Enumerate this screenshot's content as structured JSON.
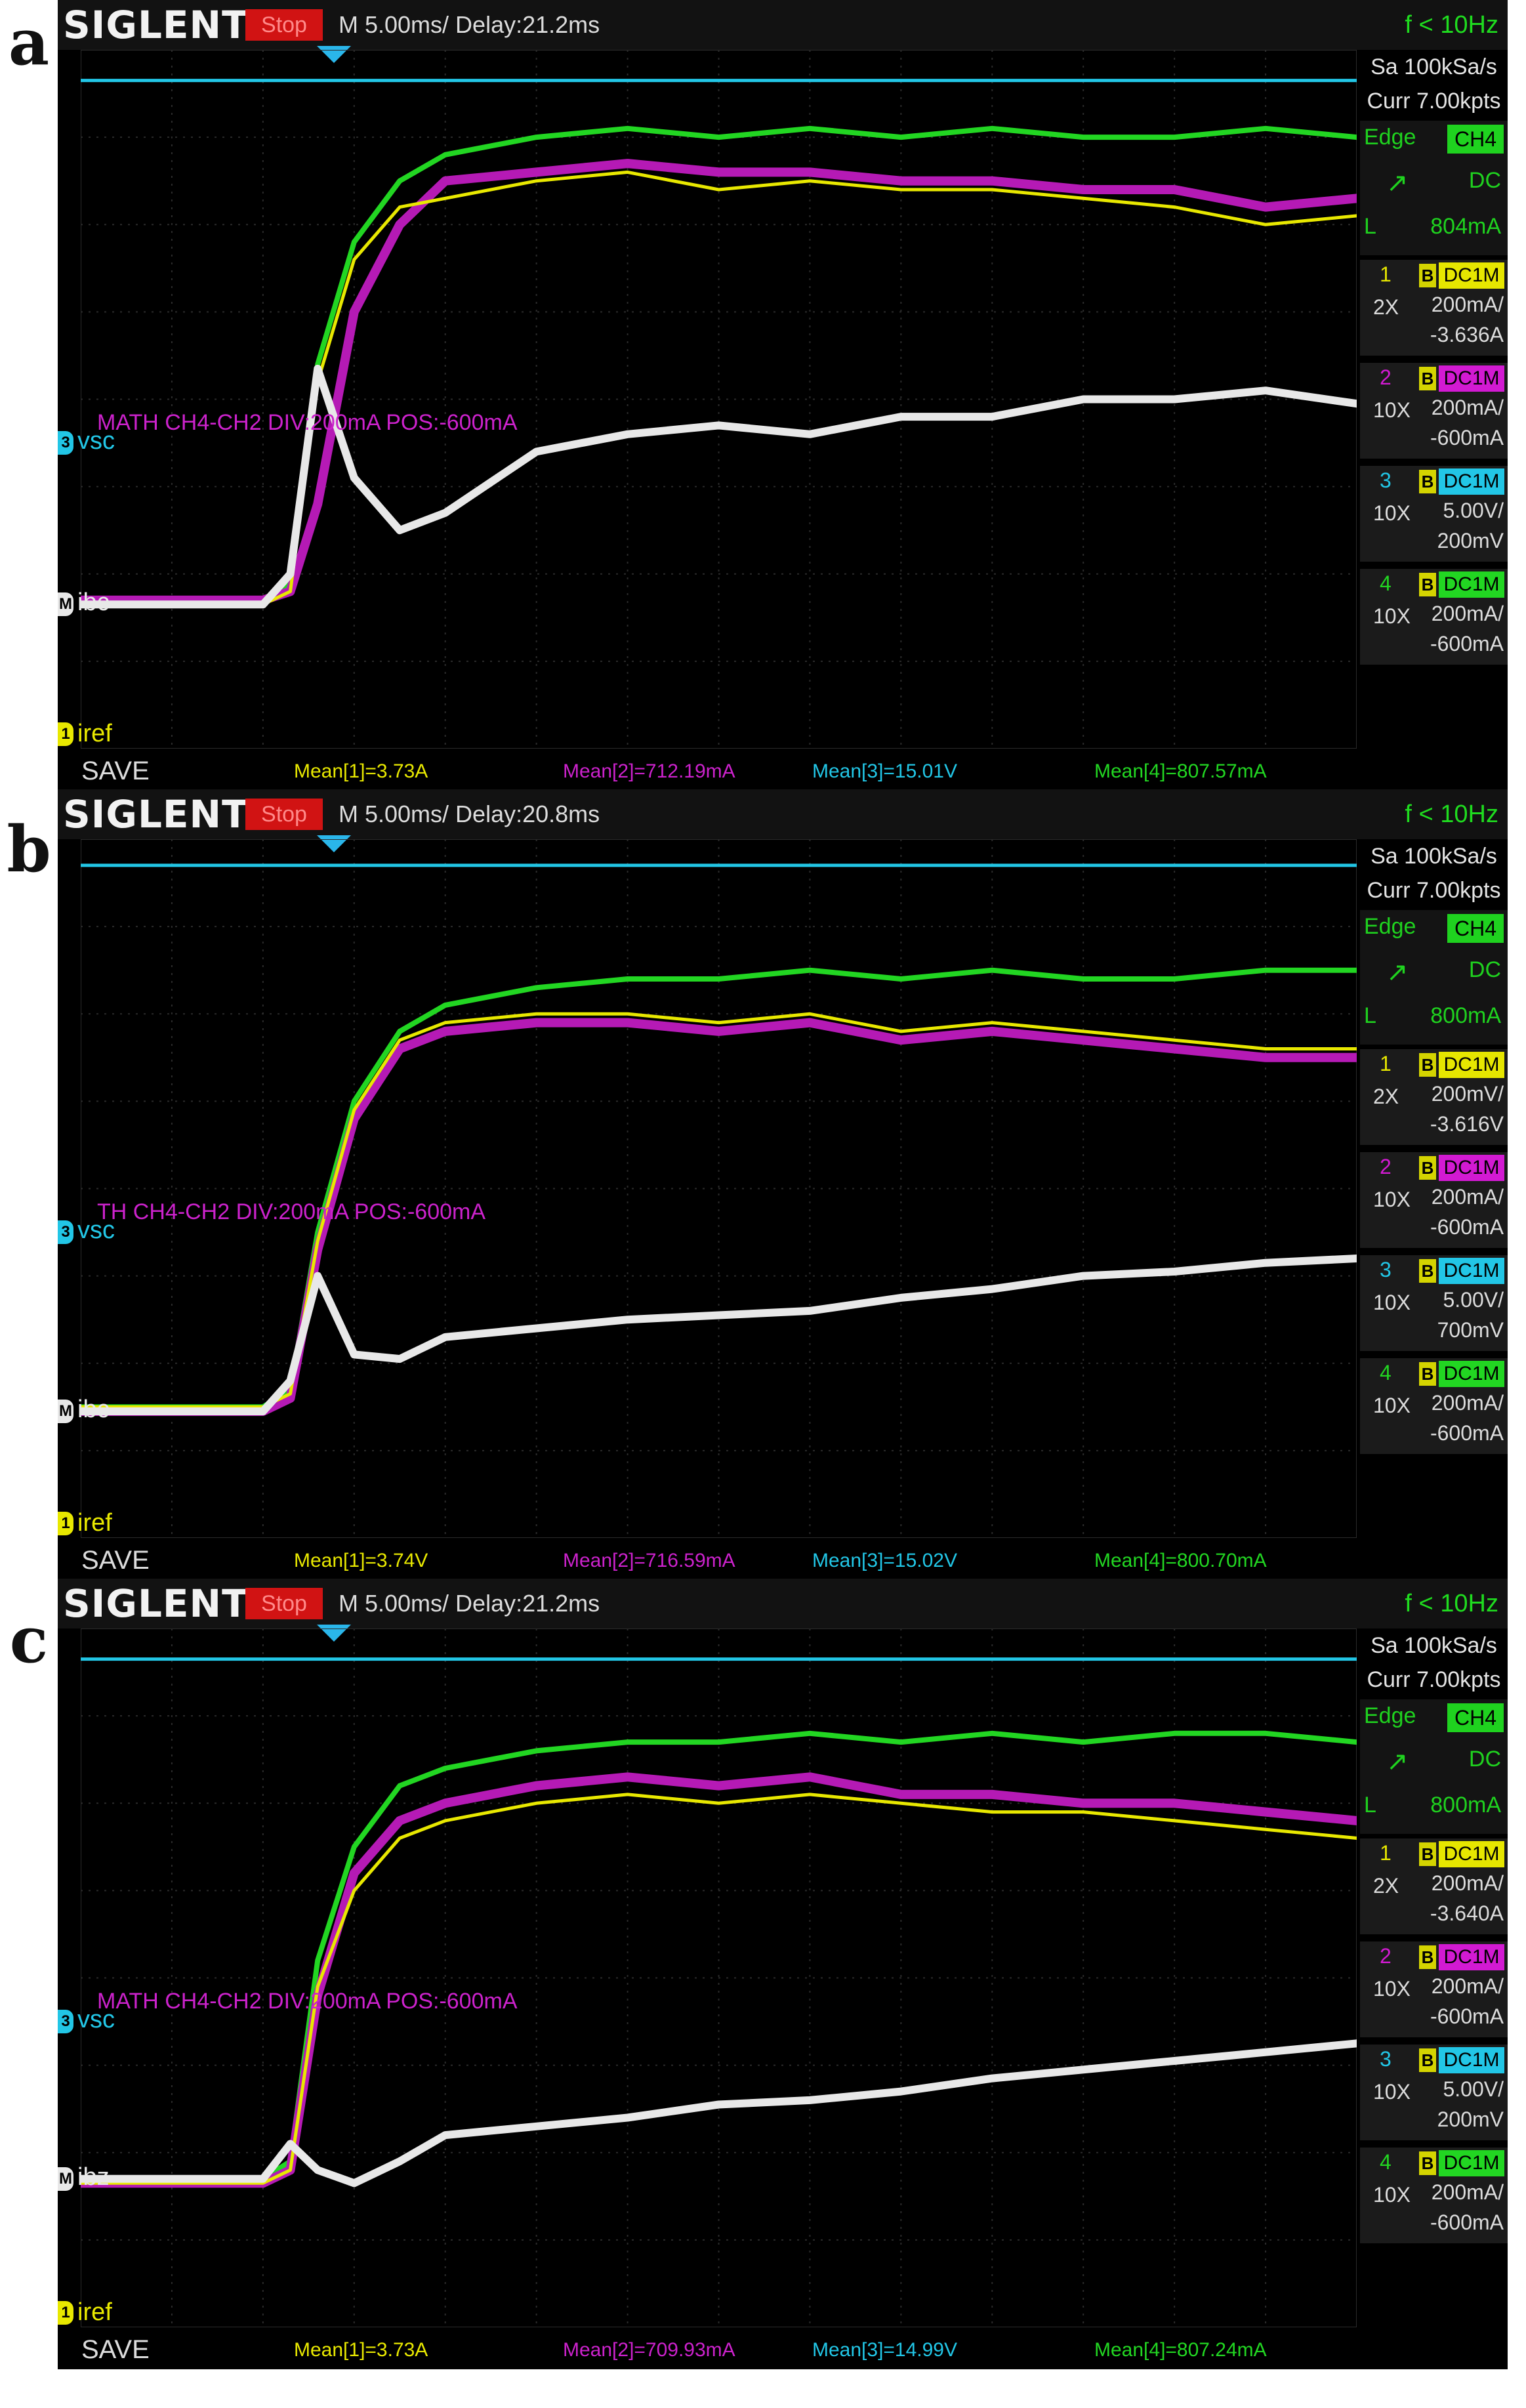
{
  "panels": [
    {
      "id": "a",
      "label": "a",
      "brand": "SIGLENT",
      "status": "Stop",
      "timebase": "M 5.00ms/ Delay:21.2ms",
      "trigger_freq": "f < 10Hz",
      "sample_rate": "Sa 100kSa/s",
      "memory": "Curr 7.00kpts",
      "trigger": {
        "type": "Edge",
        "source": "CH4",
        "coupling": "DC",
        "level_label": "L",
        "level": "804mA"
      },
      "channels": [
        {
          "num": "1",
          "bw": "B",
          "coupling": "DC1M",
          "probe": "2X",
          "vdiv": "200mA/",
          "offset": "-3.636A",
          "color": "#e6e600"
        },
        {
          "num": "2",
          "bw": "B",
          "coupling": "DC1M",
          "probe": "10X",
          "vdiv": "200mA/",
          "offset": "-600mA",
          "color": "#d21ad2"
        },
        {
          "num": "3",
          "bw": "B",
          "coupling": "DC1M",
          "probe": "10X",
          "vdiv": "5.00V/",
          "offset": "200mV",
          "color": "#22c6e6"
        },
        {
          "num": "4",
          "bw": "B",
          "coupling": "DC1M",
          "probe": "10X",
          "vdiv": "200mA/",
          "offset": "-600mA",
          "color": "#22d622"
        }
      ],
      "math_label": "MATH  CH4-CH2  DIV:200mA  POS:-600mA",
      "trace_labels": {
        "vsc": "vsc",
        "ib": "ibc",
        "iref": "iref"
      },
      "save": "SAVE",
      "measurements": [
        "Mean[1]=3.73A",
        "Mean[2]=712.19mA",
        "Mean[3]=15.01V",
        "Mean[4]=807.57mA"
      ]
    },
    {
      "id": "b",
      "label": "b",
      "brand": "SIGLENT",
      "status": "Stop",
      "timebase": "M 5.00ms/ Delay:20.8ms",
      "trigger_freq": "f < 10Hz",
      "sample_rate": "Sa 100kSa/s",
      "memory": "Curr 7.00kpts",
      "trigger": {
        "type": "Edge",
        "source": "CH4",
        "coupling": "DC",
        "level_label": "L",
        "level": "800mA"
      },
      "channels": [
        {
          "num": "1",
          "bw": "B",
          "coupling": "DC1M",
          "probe": "2X",
          "vdiv": "200mV/",
          "offset": "-3.616V",
          "color": "#e6e600"
        },
        {
          "num": "2",
          "bw": "B",
          "coupling": "DC1M",
          "probe": "10X",
          "vdiv": "200mA/",
          "offset": "-600mA",
          "color": "#d21ad2"
        },
        {
          "num": "3",
          "bw": "B",
          "coupling": "DC1M",
          "probe": "10X",
          "vdiv": "5.00V/",
          "offset": "700mV",
          "color": "#22c6e6"
        },
        {
          "num": "4",
          "bw": "B",
          "coupling": "DC1M",
          "probe": "10X",
          "vdiv": "200mA/",
          "offset": "-600mA",
          "color": "#22d622"
        }
      ],
      "math_label": "TH  CH4-CH2  DIV:200mA  POS:-600mA",
      "trace_labels": {
        "vsc": "vsc",
        "ib": "ibc",
        "iref": "iref"
      },
      "save": "SAVE",
      "measurements": [
        "Mean[1]=3.74V",
        "Mean[2]=716.59mA",
        "Mean[3]=15.02V",
        "Mean[4]=800.70mA"
      ]
    },
    {
      "id": "c",
      "label": "c",
      "brand": "SIGLENT",
      "status": "Stop",
      "timebase": "M 5.00ms/ Delay:21.2ms",
      "trigger_freq": "f < 10Hz",
      "sample_rate": "Sa 100kSa/s",
      "memory": "Curr 7.00kpts",
      "trigger": {
        "type": "Edge",
        "source": "CH4",
        "coupling": "DC",
        "level_label": "L",
        "level": "800mA"
      },
      "channels": [
        {
          "num": "1",
          "bw": "B",
          "coupling": "DC1M",
          "probe": "2X",
          "vdiv": "200mA/",
          "offset": "-3.640A",
          "color": "#e6e600"
        },
        {
          "num": "2",
          "bw": "B",
          "coupling": "DC1M",
          "probe": "10X",
          "vdiv": "200mA/",
          "offset": "-600mA",
          "color": "#d21ad2"
        },
        {
          "num": "3",
          "bw": "B",
          "coupling": "DC1M",
          "probe": "10X",
          "vdiv": "5.00V/",
          "offset": "200mV",
          "color": "#22c6e6"
        },
        {
          "num": "4",
          "bw": "B",
          "coupling": "DC1M",
          "probe": "10X",
          "vdiv": "200mA/",
          "offset": "-600mA",
          "color": "#22d622"
        }
      ],
      "math_label": "MATH  CH4-CH2  DIV:200mA  POS:-600mA",
      "trace_labels": {
        "vsc": "vsc",
        "ib": "ibz",
        "iref": "iref"
      },
      "save": "SAVE",
      "measurements": [
        "Mean[1]=3.73A",
        "Mean[2]=709.93mA",
        "Mean[3]=14.99V",
        "Mean[4]=807.24mA"
      ]
    }
  ],
  "chart_data": [
    {
      "type": "line",
      "panel": "a",
      "x_div": [
        0,
        1,
        2,
        2.3,
        2.6,
        3,
        3.5,
        4,
        5,
        6,
        7,
        8,
        9,
        10,
        11,
        12,
        13,
        14
      ],
      "ylim_div": [
        -4,
        4
      ],
      "series": [
        {
          "channel": "ch3",
          "values": [
            3.65,
            3.65,
            3.65,
            3.65,
            3.65,
            3.65,
            3.65,
            3.65,
            3.65,
            3.65,
            3.65,
            3.65,
            3.65,
            3.65,
            3.65,
            3.65,
            3.65,
            3.65
          ]
        },
        {
          "channel": "ch4",
          "values": [
            -2.3,
            -2.3,
            -2.3,
            -2.1,
            0.4,
            1.8,
            2.5,
            2.8,
            3.0,
            3.1,
            3.0,
            3.1,
            3.0,
            3.1,
            3.0,
            3.0,
            3.1,
            3.0
          ]
        },
        {
          "channel": "ch2",
          "values": [
            -2.3,
            -2.3,
            -2.3,
            -2.2,
            -1.2,
            1.0,
            2.0,
            2.5,
            2.6,
            2.7,
            2.6,
            2.6,
            2.5,
            2.5,
            2.4,
            2.4,
            2.2,
            2.3
          ]
        },
        {
          "channel": "ch1",
          "values": [
            -2.35,
            -2.35,
            -2.35,
            -2.2,
            0.2,
            1.6,
            2.2,
            2.3,
            2.5,
            2.6,
            2.4,
            2.5,
            2.4,
            2.4,
            2.3,
            2.2,
            2.0,
            2.1
          ]
        },
        {
          "channel": "math",
          "values": [
            -2.35,
            -2.35,
            -2.35,
            -2.0,
            0.35,
            -0.9,
            -1.5,
            -1.3,
            -0.6,
            -0.4,
            -0.3,
            -0.4,
            -0.2,
            -0.2,
            0.0,
            0.0,
            0.1,
            -0.05
          ]
        }
      ]
    },
    {
      "type": "line",
      "panel": "b",
      "x_div": [
        0,
        1,
        2,
        2.3,
        2.6,
        3,
        3.5,
        4,
        5,
        6,
        7,
        8,
        9,
        10,
        11,
        12,
        13,
        14
      ],
      "ylim_div": [
        -4,
        4
      ],
      "series": [
        {
          "channel": "ch3",
          "values": [
            3.7,
            3.7,
            3.7,
            3.7,
            3.7,
            3.7,
            3.7,
            3.7,
            3.7,
            3.7,
            3.7,
            3.7,
            3.7,
            3.7,
            3.7,
            3.7,
            3.7,
            3.7
          ]
        },
        {
          "channel": "ch4",
          "values": [
            -2.5,
            -2.5,
            -2.5,
            -2.3,
            -0.5,
            1.0,
            1.8,
            2.1,
            2.3,
            2.4,
            2.4,
            2.5,
            2.4,
            2.5,
            2.4,
            2.4,
            2.5,
            2.5
          ]
        },
        {
          "channel": "ch2",
          "values": [
            -2.55,
            -2.55,
            -2.55,
            -2.4,
            -0.7,
            0.8,
            1.6,
            1.8,
            1.9,
            1.9,
            1.8,
            1.9,
            1.7,
            1.8,
            1.7,
            1.6,
            1.5,
            1.5
          ]
        },
        {
          "channel": "ch1",
          "values": [
            -2.5,
            -2.5,
            -2.5,
            -2.35,
            -0.6,
            0.9,
            1.7,
            1.9,
            2.0,
            2.0,
            1.9,
            2.0,
            1.8,
            1.9,
            1.8,
            1.7,
            1.6,
            1.6
          ]
        },
        {
          "channel": "math",
          "values": [
            -2.55,
            -2.55,
            -2.55,
            -2.2,
            -1.0,
            -1.9,
            -1.95,
            -1.7,
            -1.6,
            -1.5,
            -1.45,
            -1.4,
            -1.25,
            -1.15,
            -1.0,
            -0.95,
            -0.85,
            -0.8
          ]
        }
      ]
    },
    {
      "type": "line",
      "panel": "c",
      "x_div": [
        0,
        1,
        2,
        2.3,
        2.6,
        3,
        3.5,
        4,
        5,
        6,
        7,
        8,
        9,
        10,
        11,
        12,
        13,
        14
      ],
      "ylim_div": [
        -4,
        4
      ],
      "series": [
        {
          "channel": "ch3",
          "values": [
            3.65,
            3.65,
            3.65,
            3.65,
            3.65,
            3.65,
            3.65,
            3.65,
            3.65,
            3.65,
            3.65,
            3.65,
            3.65,
            3.65,
            3.65,
            3.65,
            3.65,
            3.65
          ]
        },
        {
          "channel": "ch4",
          "values": [
            -2.3,
            -2.3,
            -2.3,
            -2.1,
            0.2,
            1.5,
            2.2,
            2.4,
            2.6,
            2.7,
            2.7,
            2.8,
            2.7,
            2.8,
            2.7,
            2.8,
            2.8,
            2.7
          ]
        },
        {
          "channel": "ch2",
          "values": [
            -2.35,
            -2.35,
            -2.35,
            -2.2,
            -0.2,
            1.2,
            1.8,
            2.0,
            2.2,
            2.3,
            2.2,
            2.3,
            2.1,
            2.1,
            2.0,
            2.0,
            1.9,
            1.8
          ]
        },
        {
          "channel": "ch1",
          "values": [
            -2.35,
            -2.35,
            -2.35,
            -2.2,
            -0.1,
            1.0,
            1.6,
            1.8,
            2.0,
            2.1,
            2.0,
            2.1,
            2.0,
            1.9,
            1.9,
            1.8,
            1.7,
            1.6
          ]
        },
        {
          "channel": "math",
          "values": [
            -2.3,
            -2.3,
            -2.3,
            -1.9,
            -2.2,
            -2.35,
            -2.1,
            -1.8,
            -1.7,
            -1.6,
            -1.45,
            -1.4,
            -1.3,
            -1.15,
            -1.05,
            -0.95,
            -0.85,
            -0.75
          ]
        }
      ]
    }
  ]
}
